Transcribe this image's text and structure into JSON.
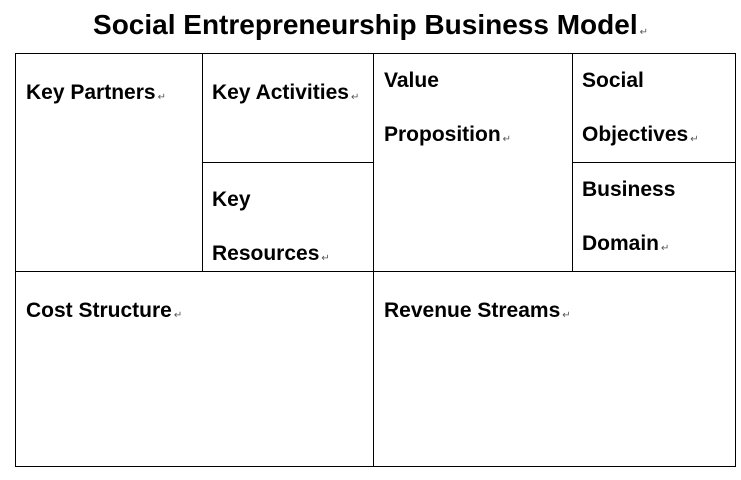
{
  "document": {
    "title": "Social Entrepreneurship Business Model",
    "paragraph_mark": "↵"
  },
  "canvas": {
    "key_partners": "Key Partners",
    "key_activities": "Key Activities",
    "key_resources": "Key Resources",
    "value_proposition": "Value Proposition",
    "social_objectives": "Social Objectives",
    "business_domain": "Business Domain",
    "cost_structure": "Cost Structure",
    "revenue_streams": "Revenue Streams"
  },
  "colors": {
    "border": "#000000",
    "text": "#000000",
    "background": "#ffffff"
  }
}
